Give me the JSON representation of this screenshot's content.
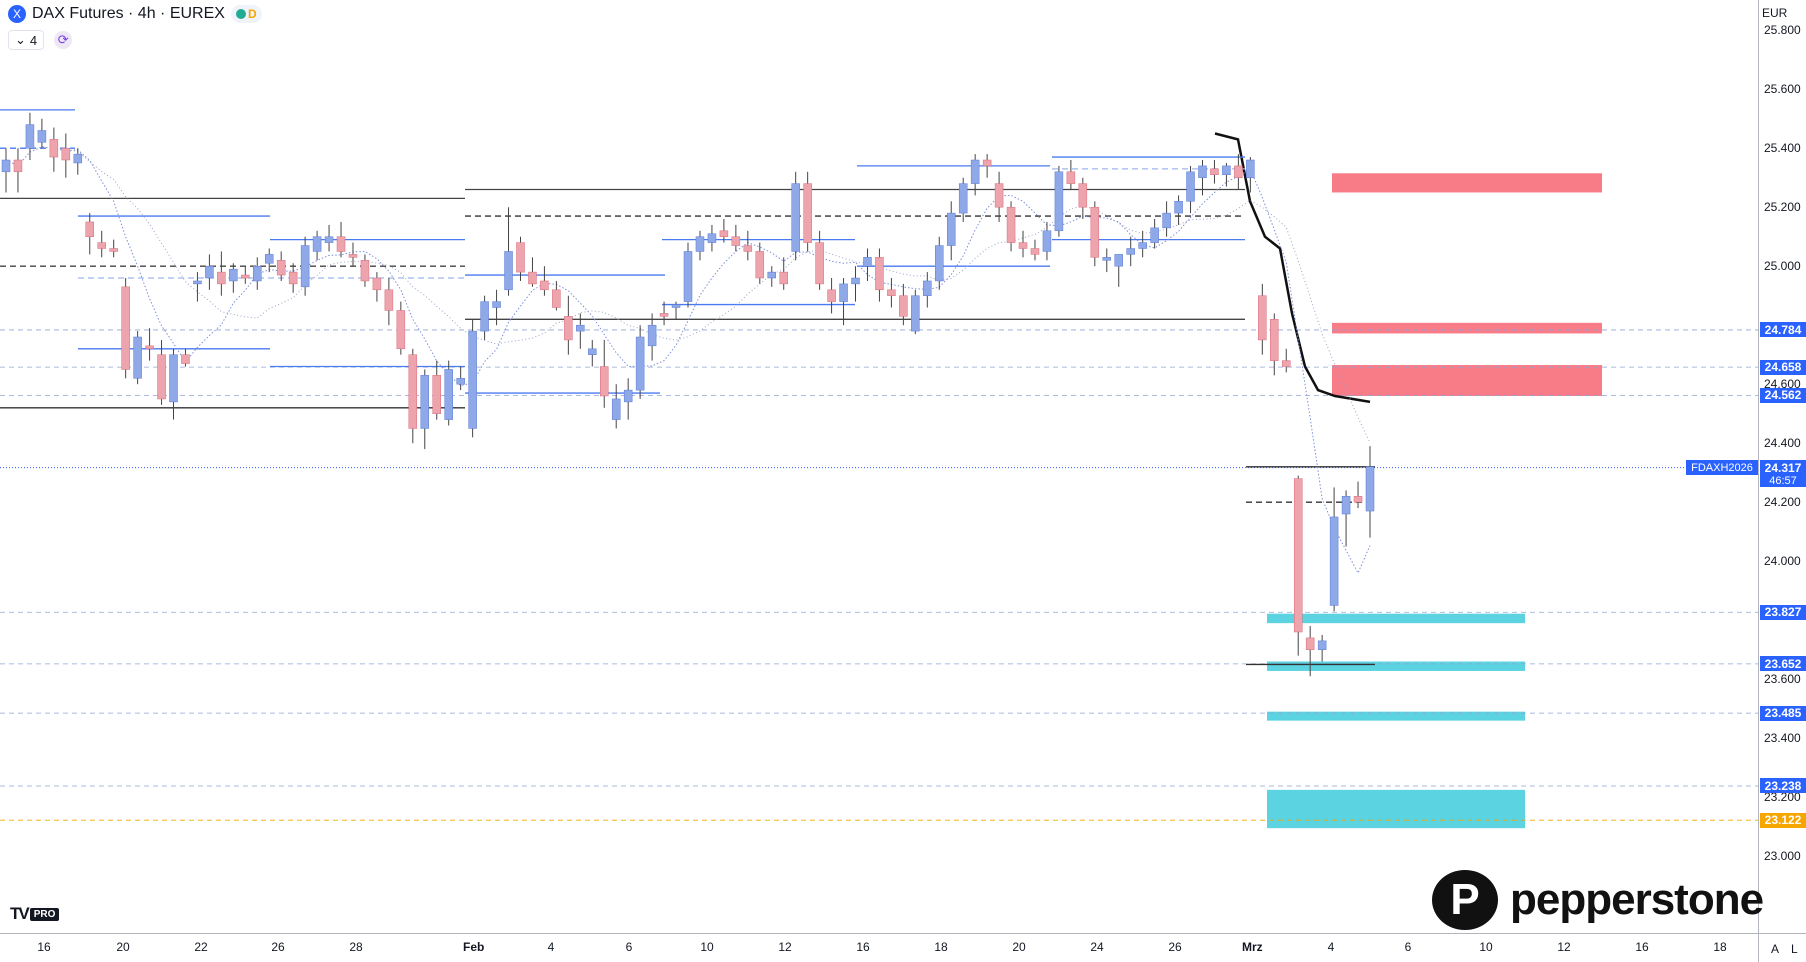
{
  "header": {
    "symbol_icon": "X",
    "title": "DAX Futures · 4h · EUREX",
    "delay_badge": "D",
    "indicators_count": "4",
    "currency": "EUR"
  },
  "colors": {
    "up": "#8fa8e8",
    "down": "#eda4ac",
    "resistance_zone": "#f77c87",
    "support_zone": "#5bd3e0",
    "price_label": "#2962ff",
    "orange_label": "#f7a600"
  },
  "chart_data": {
    "type": "candlestick",
    "title": "DAX Futures · 4h · EUREX",
    "ylim": [
      22770,
      25990
    ],
    "x_ticks": [
      "16",
      "20",
      "22",
      "26",
      "28",
      "Feb",
      "4",
      "6",
      "10",
      "12",
      "16",
      "18",
      "20",
      "24",
      "26",
      "Mrz",
      "4",
      "6",
      "10",
      "12",
      "16",
      "18"
    ],
    "y_ticks": [
      "25.800",
      "25.600",
      "25.400",
      "25.200",
      "25.000",
      "24.600",
      "24.400",
      "24.200",
      "24.000",
      "23.600",
      "23.400",
      "23.200",
      "23.000"
    ],
    "price_labels": [
      {
        "value": "24.784",
        "kind": "level"
      },
      {
        "value": "24.658",
        "kind": "level"
      },
      {
        "value": "24.562",
        "kind": "level"
      },
      {
        "value": "23.827",
        "kind": "level"
      },
      {
        "value": "23.652",
        "kind": "level"
      },
      {
        "value": "23.485",
        "kind": "level"
      },
      {
        "value": "23.238",
        "kind": "level"
      },
      {
        "value": "23.122",
        "kind": "orange"
      }
    ],
    "last_price": {
      "symbol": "FDAXH2026",
      "value": "24.317",
      "countdown": "46:57"
    },
    "resistance_zones": [
      [
        25.25,
        25.315
      ],
      [
        24.772,
        24.808
      ],
      [
        24.56,
        24.665
      ]
    ],
    "support_zones": [
      [
        23.79,
        23.822
      ],
      [
        23.628,
        23.66
      ],
      [
        23.46,
        23.49
      ],
      [
        23.095,
        23.225
      ]
    ],
    "candles": [
      [
        25.32,
        25.4,
        25.25,
        25.36
      ],
      [
        25.36,
        25.4,
        25.25,
        25.32
      ],
      [
        25.4,
        25.52,
        25.36,
        25.48
      ],
      [
        25.42,
        25.5,
        25.4,
        25.46
      ],
      [
        25.43,
        25.47,
        25.32,
        25.37
      ],
      [
        25.4,
        25.45,
        25.3,
        25.36
      ],
      [
        25.35,
        25.4,
        25.31,
        25.38
      ],
      [
        25.15,
        25.18,
        25.04,
        25.1
      ],
      [
        25.08,
        25.12,
        25.03,
        25.06
      ],
      [
        25.06,
        25.09,
        25.03,
        25.05
      ],
      [
        24.93,
        24.96,
        24.62,
        24.65
      ],
      [
        24.62,
        24.78,
        24.6,
        24.76
      ],
      [
        24.73,
        24.79,
        24.68,
        24.72
      ],
      [
        24.7,
        24.75,
        24.53,
        24.55
      ],
      [
        24.54,
        24.72,
        24.48,
        24.7
      ],
      [
        24.7,
        24.72,
        24.66,
        24.67
      ],
      [
        24.94,
        24.98,
        24.88,
        24.95
      ],
      [
        24.96,
        25.04,
        24.92,
        25.0
      ],
      [
        24.98,
        25.05,
        24.9,
        24.94
      ],
      [
        24.95,
        25.01,
        24.91,
        24.99
      ],
      [
        24.97,
        25.0,
        24.94,
        24.96
      ],
      [
        24.95,
        25.03,
        24.92,
        25.0
      ],
      [
        25.01,
        25.06,
        24.98,
        25.04
      ],
      [
        25.02,
        25.05,
        24.95,
        24.97
      ],
      [
        24.98,
        25.01,
        24.91,
        24.94
      ],
      [
        24.93,
        25.1,
        24.9,
        25.07
      ],
      [
        25.05,
        25.12,
        25.02,
        25.1
      ],
      [
        25.08,
        25.14,
        25.05,
        25.1
      ],
      [
        25.1,
        25.15,
        25.03,
        25.05
      ],
      [
        25.04,
        25.08,
        25.0,
        25.03
      ],
      [
        25.02,
        25.04,
        24.93,
        24.95
      ],
      [
        24.96,
        24.98,
        24.88,
        24.92
      ],
      [
        24.92,
        24.96,
        24.8,
        24.85
      ],
      [
        24.85,
        24.88,
        24.7,
        24.72
      ],
      [
        24.7,
        24.72,
        24.4,
        24.45
      ],
      [
        24.45,
        24.65,
        24.38,
        24.63
      ],
      [
        24.63,
        24.68,
        24.48,
        24.5
      ],
      [
        24.48,
        24.68,
        24.46,
        24.65
      ],
      [
        24.6,
        24.66,
        24.58,
        24.62
      ],
      [
        24.45,
        24.82,
        24.42,
        24.78
      ],
      [
        24.78,
        24.9,
        24.75,
        24.88
      ],
      [
        24.86,
        24.92,
        24.8,
        24.88
      ],
      [
        24.92,
        25.2,
        24.9,
        25.05
      ],
      [
        25.08,
        25.1,
        24.95,
        24.98
      ],
      [
        24.98,
        25.03,
        24.93,
        24.94
      ],
      [
        24.95,
        25.0,
        24.9,
        24.92
      ],
      [
        24.92,
        24.95,
        24.85,
        24.86
      ],
      [
        24.83,
        24.9,
        24.7,
        24.75
      ],
      [
        24.78,
        24.84,
        24.72,
        24.8
      ],
      [
        24.7,
        24.75,
        24.66,
        24.72
      ],
      [
        24.66,
        24.75,
        24.52,
        24.56
      ],
      [
        24.48,
        24.6,
        24.45,
        24.55
      ],
      [
        24.54,
        24.62,
        24.48,
        24.58
      ],
      [
        24.58,
        24.8,
        24.55,
        24.76
      ],
      [
        24.73,
        24.84,
        24.68,
        24.8
      ],
      [
        24.84,
        24.88,
        24.8,
        24.83
      ],
      [
        24.86,
        24.88,
        24.82,
        24.87
      ],
      [
        24.88,
        25.08,
        24.86,
        25.05
      ],
      [
        25.05,
        25.12,
        25.02,
        25.1
      ],
      [
        25.08,
        25.14,
        25.05,
        25.11
      ],
      [
        25.12,
        25.16,
        25.08,
        25.1
      ],
      [
        25.1,
        25.14,
        25.05,
        25.07
      ],
      [
        25.07,
        25.12,
        25.02,
        25.05
      ],
      [
        25.05,
        25.08,
        24.94,
        24.96
      ],
      [
        24.96,
        25.0,
        24.93,
        24.98
      ],
      [
        24.98,
        25.03,
        24.92,
        24.94
      ],
      [
        25.05,
        25.32,
        25.02,
        25.28
      ],
      [
        25.28,
        25.32,
        25.05,
        25.08
      ],
      [
        25.08,
        25.12,
        24.92,
        24.94
      ],
      [
        24.92,
        24.96,
        24.84,
        24.88
      ],
      [
        24.88,
        24.96,
        24.8,
        24.94
      ],
      [
        24.94,
        25.0,
        24.88,
        24.96
      ],
      [
        25.0,
        25.06,
        24.95,
        25.03
      ],
      [
        25.03,
        25.06,
        24.88,
        24.92
      ],
      [
        24.92,
        24.96,
        24.86,
        24.9
      ],
      [
        24.9,
        24.94,
        24.8,
        24.83
      ],
      [
        24.78,
        24.92,
        24.77,
        24.9
      ],
      [
        24.9,
        24.98,
        24.86,
        24.95
      ],
      [
        24.95,
        25.1,
        24.92,
        25.07
      ],
      [
        25.07,
        25.22,
        25.02,
        25.18
      ],
      [
        25.18,
        25.3,
        25.15,
        25.28
      ],
      [
        25.28,
        25.38,
        25.24,
        25.36
      ],
      [
        25.36,
        25.38,
        25.3,
        25.34
      ],
      [
        25.28,
        25.32,
        25.15,
        25.2
      ],
      [
        25.2,
        25.22,
        25.05,
        25.08
      ],
      [
        25.08,
        25.12,
        25.03,
        25.06
      ],
      [
        25.06,
        25.09,
        25.02,
        25.04
      ],
      [
        25.05,
        25.15,
        25.02,
        25.12
      ],
      [
        25.12,
        25.34,
        25.1,
        25.32
      ],
      [
        25.32,
        25.36,
        25.26,
        25.28
      ],
      [
        25.28,
        25.3,
        25.16,
        25.2
      ],
      [
        25.2,
        25.22,
        25.0,
        25.03
      ],
      [
        25.02,
        25.06,
        24.98,
        25.03
      ],
      [
        25.0,
        25.04,
        24.93,
        25.04
      ],
      [
        25.04,
        25.1,
        25.0,
        25.06
      ],
      [
        25.06,
        25.12,
        25.03,
        25.08
      ],
      [
        25.08,
        25.16,
        25.06,
        25.13
      ],
      [
        25.13,
        25.22,
        25.1,
        25.18
      ],
      [
        25.18,
        25.24,
        25.14,
        25.22
      ],
      [
        25.22,
        25.34,
        25.18,
        25.32
      ],
      [
        25.3,
        25.36,
        25.24,
        25.34
      ],
      [
        25.33,
        25.36,
        25.28,
        25.31
      ],
      [
        25.31,
        25.35,
        25.27,
        25.34
      ],
      [
        25.34,
        25.38,
        25.26,
        25.3
      ],
      [
        25.3,
        25.37,
        25.25,
        25.36
      ],
      [
        24.9,
        24.94,
        24.7,
        24.75
      ],
      [
        24.82,
        24.84,
        24.63,
        24.68
      ],
      [
        24.68,
        24.72,
        24.64,
        24.66
      ],
      [
        24.28,
        24.29,
        23.68,
        23.76
      ],
      [
        23.74,
        23.78,
        23.61,
        23.7
      ],
      [
        23.7,
        23.75,
        23.66,
        23.73
      ],
      [
        23.85,
        24.25,
        23.83,
        24.15
      ],
      [
        24.16,
        24.24,
        24.05,
        24.22
      ],
      [
        24.22,
        24.27,
        24.18,
        24.2
      ],
      [
        24.17,
        24.39,
        24.08,
        24.32
      ]
    ]
  },
  "watermarks": {
    "tv_mark": "TV",
    "tv_pro": "PRO",
    "brand_mark": "P",
    "brand_name": "pepperstone"
  },
  "corner": {
    "auto_btn": "A",
    "log_btn": "L"
  }
}
